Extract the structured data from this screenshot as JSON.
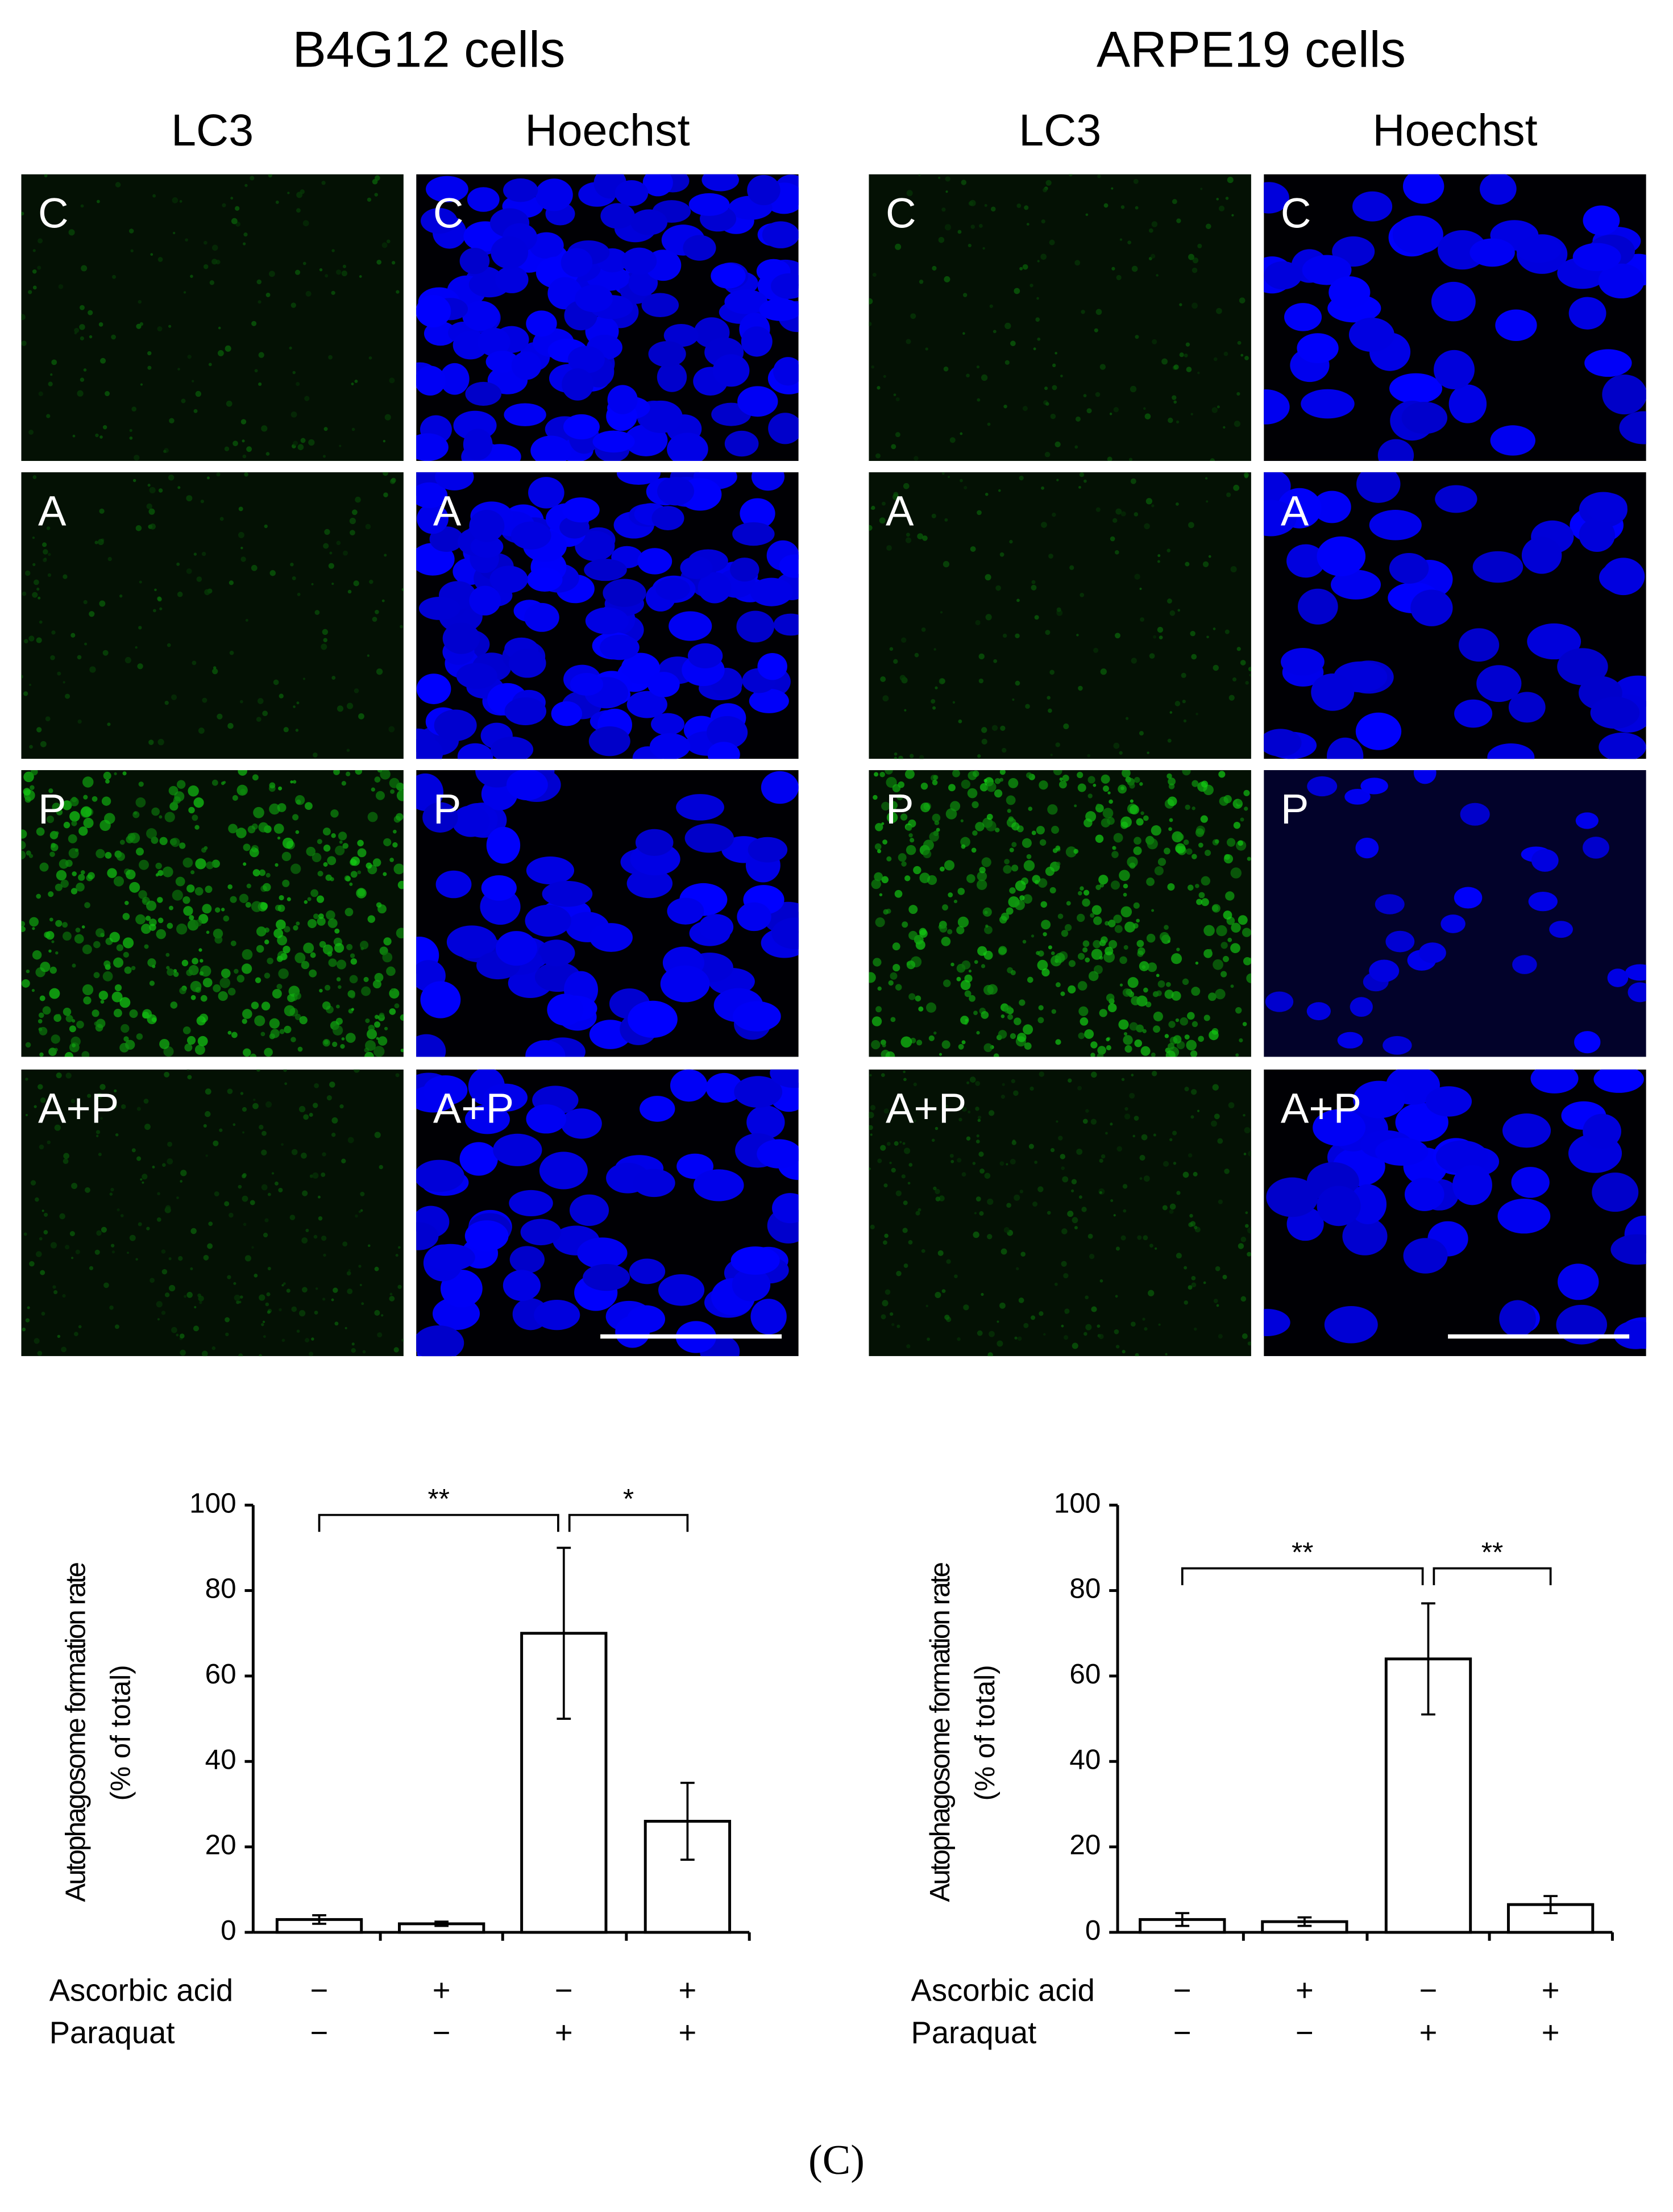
{
  "figure": {
    "panels": [
      {
        "title": "B4G12 cells",
        "columns": [
          "LC3",
          "Hoechst"
        ]
      },
      {
        "title": "ARPE19 cells",
        "columns": [
          "LC3",
          "Hoechst"
        ]
      }
    ],
    "rows": [
      "C",
      "A",
      "P",
      "A+P"
    ],
    "caption": "(C)"
  },
  "chart_data": [
    {
      "type": "bar",
      "ylabel": [
        "Autophagosome formation rate",
        "(% of total)"
      ],
      "treatments": [
        {
          "name": "Ascorbic acid",
          "signs": [
            "−",
            "+",
            "−",
            "+"
          ]
        },
        {
          "name": "Paraquat",
          "signs": [
            "−",
            "−",
            "+",
            "+"
          ]
        }
      ],
      "values": [
        3,
        2,
        70,
        26
      ],
      "errors": [
        1,
        0.5,
        20,
        9
      ],
      "color": "#ffffff",
      "ylim": [
        0,
        100
      ],
      "yticks": [
        0,
        20,
        40,
        60,
        80,
        100
      ],
      "significance": [
        {
          "label": "**",
          "pair": [
            0,
            2
          ]
        },
        {
          "label": "*",
          "pair": [
            2,
            3
          ]
        }
      ]
    },
    {
      "type": "bar",
      "ylabel": [
        "Autophagosome formation rate",
        "(% of total)"
      ],
      "treatments": [
        {
          "name": "Ascorbic acid",
          "signs": [
            "−",
            "+",
            "−",
            "+"
          ]
        },
        {
          "name": "Paraquat",
          "signs": [
            "−",
            "−",
            "+",
            "+"
          ]
        }
      ],
      "values": [
        3,
        2.5,
        64,
        6.5
      ],
      "errors": [
        1.5,
        1,
        13,
        2
      ],
      "color": "#ffffff",
      "ylim": [
        0,
        100
      ],
      "yticks": [
        0,
        20,
        40,
        60,
        80,
        100
      ],
      "significance": [
        {
          "label": "**",
          "pair": [
            0,
            2
          ]
        },
        {
          "label": "**",
          "pair": [
            2,
            3
          ]
        }
      ]
    }
  ]
}
